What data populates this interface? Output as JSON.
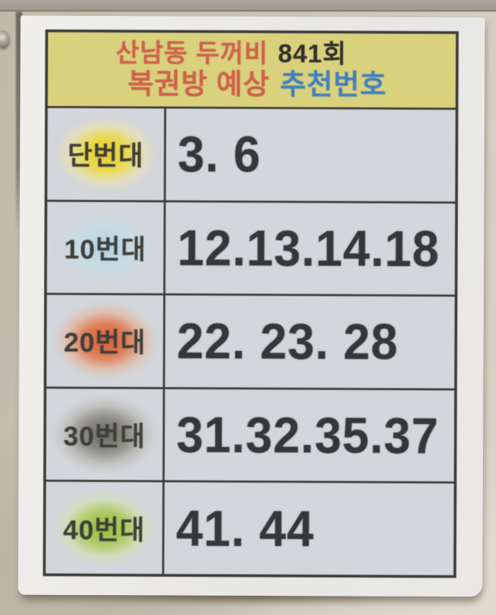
{
  "poster": {
    "header": {
      "store_name": "산남동 두꺼비",
      "round": "841회",
      "subtitle": "복권방 예상",
      "subtitle_highlight": "추천번호"
    },
    "rows": [
      {
        "label": "단번대",
        "numbers": "3. 6",
        "highlight": "yellow"
      },
      {
        "label": "10번대",
        "numbers": "12.13.14.18",
        "highlight": "blue"
      },
      {
        "label": "20번대",
        "numbers": "22. 23. 28",
        "highlight": "red"
      },
      {
        "label": "30번대",
        "numbers": "31.32.35.37",
        "highlight": "gray"
      },
      {
        "label": "40번대",
        "numbers": "41. 44",
        "highlight": "green"
      }
    ],
    "colors": {
      "wall": "#c9c3b5",
      "paper": "#e9e8e5",
      "table-border": "#3c3c39",
      "cell-bg": "#d3d6da",
      "header-bg": "#d9d17c",
      "header-red": "#d2604a",
      "header-dark": "#30302c",
      "header-blue": "#3e80c2",
      "label-text": "#403f39",
      "number-text": "#35373b",
      "highlight-yellow": "#e7cb28",
      "highlight-blue": "#b0d5e4",
      "highlight-red": "#d55c35",
      "highlight-gray": "#686763",
      "highlight-green": "#99bc37"
    }
  }
}
